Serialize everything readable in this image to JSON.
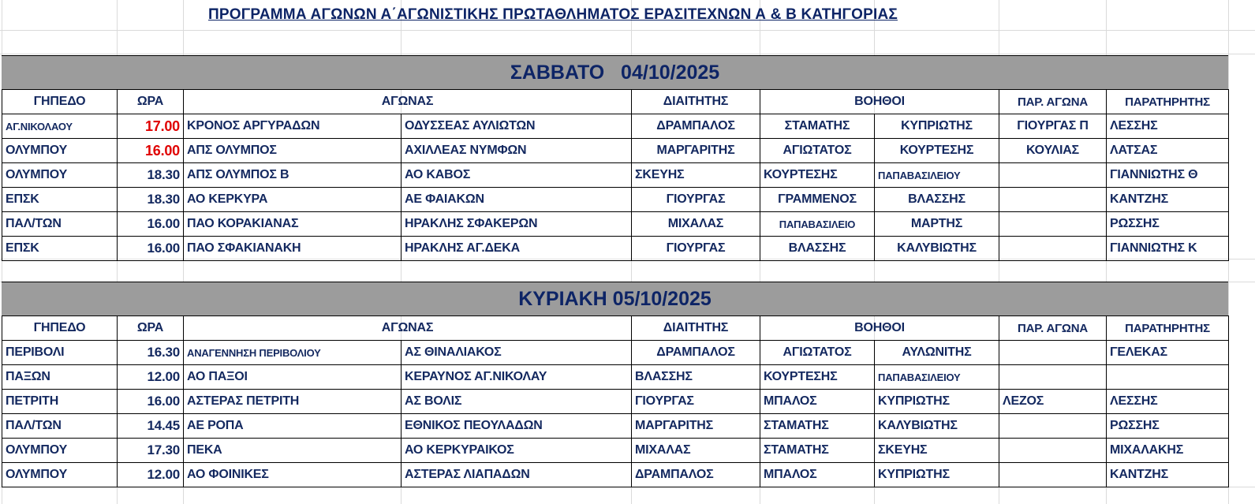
{
  "title": "ΠΡΟΓΡΑΜΜΑ ΑΓΩΝΩΝ Α΄ΑΓΩΝΙΣΤΙΚΗΣ ΠΡΩΤΑΘΛΗΜΑΤΟΣ ΕΡΑΣΙΤΕΧΝΩΝ Α & Β ΚΑΤΗΓΟΡΙΑΣ",
  "colors": {
    "text": "#13285f",
    "highlight_time": "#e00000",
    "band": "#9c9c9c"
  },
  "headers": {
    "venue": "ΓΗΠΕΔΟ",
    "time": "ΩΡΑ",
    "match": "ΑΓΩΝΑΣ",
    "referee": "ΔΙΑΙΤΗΤΗΣ",
    "assistants": "ΒΟΗΘΟΙ",
    "match_observer": "ΠΑΡ. ΑΓΩΝΑ",
    "observer": "ΠΑΡΑΤΗΡΗΤΗΣ"
  },
  "sections": [
    {
      "day": "ΣΑΒΒΑΤΟ   04/10/2025",
      "rows": [
        [
          "ΑΓ.ΝΙΚΟΛΑΟΥ",
          "17.00",
          "ΚΡΟΝΟΣ ΑΡΓΥΡΑΔΩΝ",
          "ΟΔΥΣΣΕΑΣ ΑΥΛΙΩΤΩΝ",
          "ΔΡΑΜΠΑΛΟΣ",
          "ΣΤΑΜΑΤΗΣ",
          "ΚΥΠΡΙΩΤΗΣ",
          "ΓΙΟΥΡΓΑΣ Π",
          "ΛΕΣΣΗΣ"
        ],
        [
          "ΟΛΥΜΠΟΥ",
          "16.00",
          "ΑΠΣ ΟΛΥΜΠΟΣ",
          "ΑΧΙΛΛΕΑΣ ΝΥΜΦΩΝ",
          "ΜΑΡΓΑΡΙΤΗΣ",
          "ΑΓΙΩΤΑΤΟΣ",
          "ΚΟΥΡΤΕΣΗΣ",
          "ΚΟΥΛΙΑΣ",
          "ΛΑΤΣΑΣ"
        ],
        [
          "ΟΛΥΜΠΟΥ",
          "18.30",
          "ΑΠΣ ΟΛΥΜΠΟΣ Β",
          "ΑΟ ΚΑΒΟΣ",
          "ΣΚΕΥΗΣ",
          "ΚΟΥΡΤΕΣΗΣ",
          "ΠΑΠΑΒΑΣΙΛΕΙΟΥ",
          "",
          "ΓΙΑΝΝΙΩΤΗΣ Θ"
        ],
        [
          "ΕΠΣΚ",
          "18.30",
          "ΑΟ ΚΕΡΚΥΡΑ",
          "ΑΕ ΦΑΙΑΚΩΝ",
          "ΓΙΟΥΡΓΑΣ",
          "ΓΡΑΜΜΕΝΟΣ",
          "ΒΛΑΣΣΗΣ",
          "",
          "ΚΑΝΤΖΗΣ"
        ],
        [
          "ΠΑΛ/ΤΩΝ",
          "16.00",
          "ΠΑΟ ΚΟΡΑΚΙΑΝΑΣ",
          "ΗΡΑΚΛΗΣ ΣΦΑΚΕΡΩΝ",
          "ΜΙΧΑΛΑΣ",
          "ΠΑΠΑΒΑΣΙΛΕΙΟ",
          "ΜΑΡΤΗΣ",
          "",
          "ΡΩΣΣΗΣ"
        ],
        [
          "ΕΠΣΚ",
          "16.00",
          "ΠΑΟ ΣΦΑΚΙΑΝΑΚΗ",
          "ΗΡΑΚΛΗΣ ΑΓ.ΔΕΚΑ",
          "ΓΙΟΥΡΓΑΣ",
          "ΒΛΑΣΣΗΣ",
          "ΚΑΛΥΒΙΩΤΗΣ",
          "",
          "ΓΙΑΝΝΙΩΤΗΣ Κ"
        ]
      ]
    },
    {
      "day": "ΚΥΡΙΑΚΗ 05/10/2025",
      "rows": [
        [
          "ΠΕΡΙΒΟΛΙ",
          "16.30",
          "ΑΝΑΓΕΝΝΗΣΗ ΠΕΡΙΒΟΛΙΟΥ",
          "ΑΣ ΘΙΝΑΛΙΑΚΟΣ",
          "ΔΡΑΜΠΑΛΟΣ",
          "ΑΓΙΩΤΑΤΟΣ",
          "ΑΥΛΩΝΙΤΗΣ",
          "",
          "ΓΕΛΕΚΑΣ"
        ],
        [
          "ΠΑΞΩΝ",
          "12.00",
          "ΑΟ ΠΑΞΟΙ",
          "ΚΕΡΑΥΝΟΣ ΑΓ.ΝΙΚΟΛΑΥ",
          "ΒΛΑΣΣΗΣ",
          "ΚΟΥΡΤΕΣΗΣ",
          "ΠΑΠΑΒΑΣΙΛΕΙΟΥ",
          "",
          ""
        ],
        [
          "ΠΕΤΡΙΤΗ",
          "16.00",
          "ΑΣΤΕΡΑΣ ΠΕΤΡΙΤΗ",
          "ΑΣ ΒΟΛΙΣ",
          "ΓΙΟΥΡΓΑΣ",
          "ΜΠΑΛΟΣ",
          "ΚΥΠΡΙΩΤΗΣ",
          "ΛΕΖΟΣ",
          "ΛΕΣΣΗΣ"
        ],
        [
          "ΠΑΛ/ΤΩΝ",
          "14.45",
          "ΑΕ ΡΟΠΑ",
          "ΕΘΝΙΚΟΣ ΠΕΟΥΛΑΔΩΝ",
          "ΜΑΡΓΑΡΙΤΗΣ",
          "ΣΤΑΜΑΤΗΣ",
          "ΚΑΛΥΒΙΩΤΗΣ",
          "",
          "ΡΩΣΣΗΣ"
        ],
        [
          "ΟΛΥΜΠΟΥ",
          "17.30",
          "ΠΕΚΑ",
          "ΑΟ ΚΕΡΚΥΡΑΙΚΟΣ",
          "ΜΙΧΑΛΑΣ",
          "ΣΤΑΜΑΤΗΣ",
          "ΣΚΕΥΗΣ",
          "",
          "ΜΙΧΑΛΑΚΗΣ"
        ],
        [
          "ΟΛΥΜΠΟΥ",
          "12.00",
          "ΑΟ ΦΟΙΝΙΚΕΣ",
          "ΑΣΤΕΡΑΣ ΛΙΑΠΑΔΩΝ",
          "ΔΡΑΜΠΑΛΟΣ",
          "ΜΠΑΛΟΣ",
          "ΚΥΠΡΙΩΤΗΣ",
          "",
          "ΚΑΝΤΖΗΣ"
        ]
      ]
    }
  ]
}
